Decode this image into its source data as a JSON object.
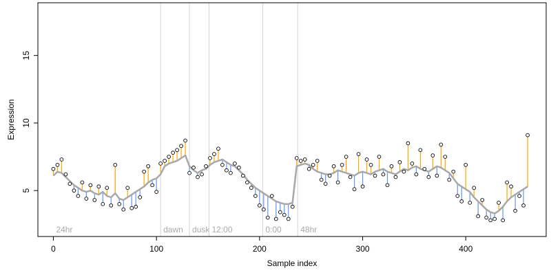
{
  "chart_data": {
    "type": "scatter",
    "xlabel": "Sample index",
    "ylabel": "Expression",
    "xlim": [
      -15,
      478
    ],
    "ylim": [
      1.6,
      18.9
    ],
    "xticks": [
      0,
      100,
      200,
      300,
      400
    ],
    "yticks": [
      5,
      10,
      15
    ],
    "grid": false,
    "colors": {
      "above_fit": "#ffa500",
      "below_fit": "#6495ed",
      "fit_line": "#a8a8a8",
      "point_edge": "#000000",
      "marker_line": "#d3d3d3",
      "marker_text": "#a9a9a9"
    },
    "markers": [
      {
        "x": 0,
        "label": "24hr"
      },
      {
        "x": 104,
        "label": "dawn"
      },
      {
        "x": 132,
        "label": "dusk"
      },
      {
        "x": 151,
        "label": "12:00"
      },
      {
        "x": 203,
        "label": "0:00"
      },
      {
        "x": 237,
        "label": "48hr"
      }
    ],
    "x": [
      0,
      4,
      8,
      12,
      16,
      20,
      24,
      28,
      32,
      36,
      40,
      44,
      48,
      52,
      56,
      60,
      64,
      68,
      72,
      76,
      80,
      84,
      88,
      92,
      96,
      100,
      104,
      108,
      112,
      116,
      120,
      124,
      128,
      132,
      136,
      140,
      144,
      148,
      152,
      156,
      160,
      164,
      168,
      172,
      176,
      180,
      184,
      188,
      192,
      196,
      200,
      204,
      208,
      212,
      216,
      220,
      224,
      228,
      232,
      236,
      240,
      244,
      248,
      252,
      256,
      260,
      264,
      268,
      272,
      276,
      280,
      284,
      288,
      292,
      296,
      300,
      304,
      308,
      312,
      316,
      320,
      324,
      328,
      332,
      336,
      340,
      344,
      348,
      352,
      356,
      360,
      364,
      368,
      372,
      376,
      380,
      384,
      388,
      392,
      396,
      400,
      404,
      408,
      412,
      416,
      420,
      424,
      428,
      432,
      436,
      440,
      444,
      448,
      452,
      456,
      460
    ],
    "fit": [
      6.1,
      6.4,
      6.3,
      6.0,
      5.7,
      5.4,
      5.2,
      5.0,
      4.9,
      5.0,
      4.8,
      4.7,
      4.9,
      4.6,
      4.5,
      4.8,
      4.4,
      4.3,
      4.5,
      4.7,
      4.9,
      5.1,
      5.3,
      5.6,
      5.8,
      5.9,
      6.2,
      6.8,
      7.0,
      7.1,
      7.2,
      7.4,
      7.6,
      6.8,
      6.5,
      6.3,
      6.5,
      6.6,
      6.9,
      7.1,
      7.2,
      7.3,
      7.1,
      6.9,
      6.8,
      6.5,
      6.2,
      5.8,
      5.5,
      5.2,
      5.0,
      4.8,
      4.6,
      4.4,
      4.2,
      4.1,
      4.0,
      4.0,
      4.1,
      6.8,
      6.9,
      7.0,
      6.9,
      6.6,
      6.4,
      6.3,
      6.2,
      6.2,
      6.3,
      6.5,
      6.4,
      6.3,
      6.2,
      6.1,
      6.3,
      6.4,
      6.3,
      6.2,
      6.4,
      6.5,
      6.6,
      6.4,
      6.3,
      6.2,
      6.4,
      6.6,
      6.5,
      6.7,
      6.8,
      6.6,
      6.5,
      6.4,
      6.6,
      6.8,
      6.7,
      6.5,
      6.3,
      5.9,
      5.5,
      5.3,
      5.1,
      4.9,
      4.5,
      4.2,
      3.9,
      3.6,
      3.4,
      3.3,
      3.5,
      3.8,
      4.2,
      4.5,
      4.7,
      4.9,
      5.1,
      5.3
    ],
    "y": [
      6.6,
      6.9,
      7.3,
      6.2,
      5.5,
      5.0,
      4.6,
      5.6,
      4.4,
      5.4,
      4.3,
      5.3,
      4.0,
      5.2,
      3.9,
      6.9,
      4.0,
      3.6,
      5.2,
      3.7,
      3.8,
      4.5,
      6.4,
      6.8,
      5.4,
      4.9,
      7.0,
      7.2,
      7.5,
      7.8,
      8.0,
      8.3,
      8.7,
      6.3,
      6.7,
      6.0,
      6.2,
      6.8,
      7.4,
      7.7,
      8.1,
      6.9,
      6.5,
      6.3,
      7.0,
      6.7,
      6.1,
      5.6,
      5.2,
      4.6,
      3.9,
      3.6,
      3.0,
      4.6,
      2.9,
      3.4,
      3.2,
      2.9,
      3.8,
      7.4,
      7.2,
      7.3,
      6.6,
      6.9,
      7.2,
      5.8,
      5.5,
      6.1,
      6.8,
      5.6,
      6.9,
      7.5,
      6.0,
      5.1,
      7.7,
      5.3,
      7.3,
      6.9,
      6.1,
      7.5,
      6.2,
      5.4,
      6.8,
      6.0,
      7.1,
      6.4,
      8.5,
      7.0,
      6.2,
      8.0,
      6.6,
      6.0,
      7.6,
      6.1,
      8.4,
      7.5,
      5.8,
      6.4,
      4.6,
      4.2,
      6.9,
      4.1,
      5.2,
      3.1,
      4.3,
      3.0,
      2.8,
      2.9,
      4.1,
      2.8,
      5.6,
      5.3,
      3.5,
      4.6,
      3.9,
      9.1
    ]
  }
}
